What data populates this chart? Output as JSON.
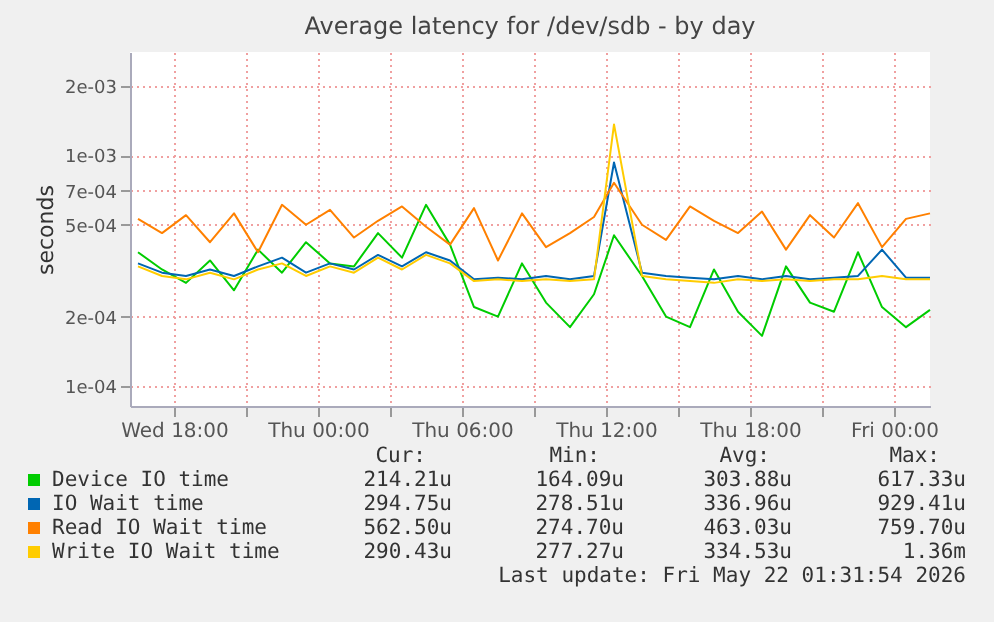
{
  "chart_data": {
    "type": "line",
    "title": "Average latency for /dev/sdb - by day",
    "ylabel": "seconds",
    "log": "y",
    "grid": true,
    "legend": "bottom",
    "marker": "none",
    "line_style": "solid",
    "x": [
      "2026-05-20T16:30",
      "2026-05-20T17:30",
      "2026-05-20T18:30",
      "2026-05-20T19:30",
      "2026-05-20T20:30",
      "2026-05-20T21:30",
      "2026-05-20T22:30",
      "2026-05-20T23:30",
      "2026-05-21T00:30",
      "2026-05-21T01:30",
      "2026-05-21T02:30",
      "2026-05-21T03:30",
      "2026-05-21T04:30",
      "2026-05-21T05:30",
      "2026-05-21T06:30",
      "2026-05-21T07:30",
      "2026-05-21T08:30",
      "2026-05-21T09:30",
      "2026-05-21T10:30",
      "2026-05-21T11:30",
      "2026-05-21T12:20",
      "2026-05-21T13:30",
      "2026-05-21T14:30",
      "2026-05-21T15:30",
      "2026-05-21T16:30",
      "2026-05-21T17:30",
      "2026-05-21T18:30",
      "2026-05-21T19:30",
      "2026-05-21T20:30",
      "2026-05-21T21:30",
      "2026-05-21T22:30",
      "2026-05-21T23:30",
      "2026-05-22T00:30",
      "2026-05-22T01:30"
    ],
    "series": [
      {
        "name": "Device IO time",
        "color": "#00cc00",
        "values": [
          0.00038,
          0.00032,
          0.00028,
          0.00035,
          0.00026,
          0.00039,
          0.00031,
          0.00042,
          0.00034,
          0.00033,
          0.00046,
          0.00036,
          0.00061,
          0.00041,
          0.00022,
          0.0002,
          0.00034,
          0.00023,
          0.00018,
          0.00025,
          0.00045,
          0.0003,
          0.0002,
          0.00018,
          0.00032,
          0.00021,
          0.000165,
          0.00033,
          0.00023,
          0.00021,
          0.00038,
          0.00022,
          0.00018,
          0.000214
        ]
      },
      {
        "name": "IO Wait time",
        "color": "#0066b3",
        "values": [
          0.00034,
          0.00031,
          0.0003,
          0.00032,
          0.0003,
          0.00033,
          0.00036,
          0.00031,
          0.00034,
          0.00032,
          0.00037,
          0.00033,
          0.00038,
          0.00035,
          0.00029,
          0.000295,
          0.00029,
          0.0003,
          0.00029,
          0.0003,
          0.00093,
          0.00031,
          0.0003,
          0.000295,
          0.00029,
          0.0003,
          0.00029,
          0.0003,
          0.00029,
          0.000295,
          0.0003,
          0.00039,
          0.000295,
          0.000295
        ]
      },
      {
        "name": "Read IO Wait time",
        "color": "#ff8000",
        "values": [
          0.00053,
          0.00046,
          0.00055,
          0.00042,
          0.00056,
          0.00038,
          0.00061,
          0.0005,
          0.00058,
          0.00044,
          0.00052,
          0.0006,
          0.00049,
          0.00041,
          0.00059,
          0.00035,
          0.00056,
          0.0004,
          0.00046,
          0.00054,
          0.00076,
          0.0005,
          0.00043,
          0.0006,
          0.00052,
          0.00046,
          0.00057,
          0.00039,
          0.00055,
          0.00044,
          0.00062,
          0.0004,
          0.00053,
          0.00056
        ]
      },
      {
        "name": "Write IO Wait time",
        "color": "#ffcc00",
        "values": [
          0.00033,
          0.0003,
          0.00029,
          0.00031,
          0.00029,
          0.00032,
          0.00034,
          0.0003,
          0.00033,
          0.00031,
          0.00036,
          0.00032,
          0.00037,
          0.00034,
          0.000285,
          0.00029,
          0.000285,
          0.00029,
          0.000285,
          0.00029,
          0.00136,
          0.0003,
          0.00029,
          0.000285,
          0.00028,
          0.00029,
          0.000285,
          0.00029,
          0.000285,
          0.00029,
          0.00029,
          0.0003,
          0.00029,
          0.00029
        ]
      }
    ],
    "xlim": [
      "2026-05-20T16:10",
      "2026-05-22T01:30"
    ],
    "xticks": [
      {
        "value": "2026-05-20T18:00",
        "label": "Wed 18:00"
      },
      {
        "value": "2026-05-20T21:00",
        "label": null
      },
      {
        "value": "2026-05-21T00:00",
        "label": "Thu 00:00"
      },
      {
        "value": "2026-05-21T03:00",
        "label": null
      },
      {
        "value": "2026-05-21T06:00",
        "label": "Thu 06:00"
      },
      {
        "value": "2026-05-21T09:00",
        "label": null
      },
      {
        "value": "2026-05-21T12:00",
        "label": "Thu 12:00"
      },
      {
        "value": "2026-05-21T15:00",
        "label": null
      },
      {
        "value": "2026-05-21T18:00",
        "label": "Thu 18:00"
      },
      {
        "value": "2026-05-21T21:00",
        "label": null
      },
      {
        "value": "2026-05-22T00:00",
        "label": "Fri 00:00"
      }
    ],
    "ylim": [
      8.2e-05,
      0.0028
    ],
    "yticks": [
      {
        "value": 0.0001,
        "label": "1e-04"
      },
      {
        "value": 0.0002,
        "label": "2e-04"
      },
      {
        "value": 0.0005,
        "label": "5e-04"
      },
      {
        "value": 0.0007,
        "label": "7e-04"
      },
      {
        "value": 0.001,
        "label": "1e-03"
      },
      {
        "value": 0.002,
        "label": "2e-03"
      }
    ],
    "annotations": [
      "Cur:",
      "Min:",
      "Avg:",
      "Max:",
      "214.21u",
      "164.09u",
      "303.88u",
      "617.33u",
      "294.75u",
      "278.51u",
      "336.96u",
      "929.41u",
      "562.50u",
      "274.70u",
      "463.03u",
      "759.70u",
      "290.43u",
      "277.27u",
      "334.53u",
      "1.36m",
      "Last update: Fri May 22 01:31:54 2026"
    ]
  }
}
